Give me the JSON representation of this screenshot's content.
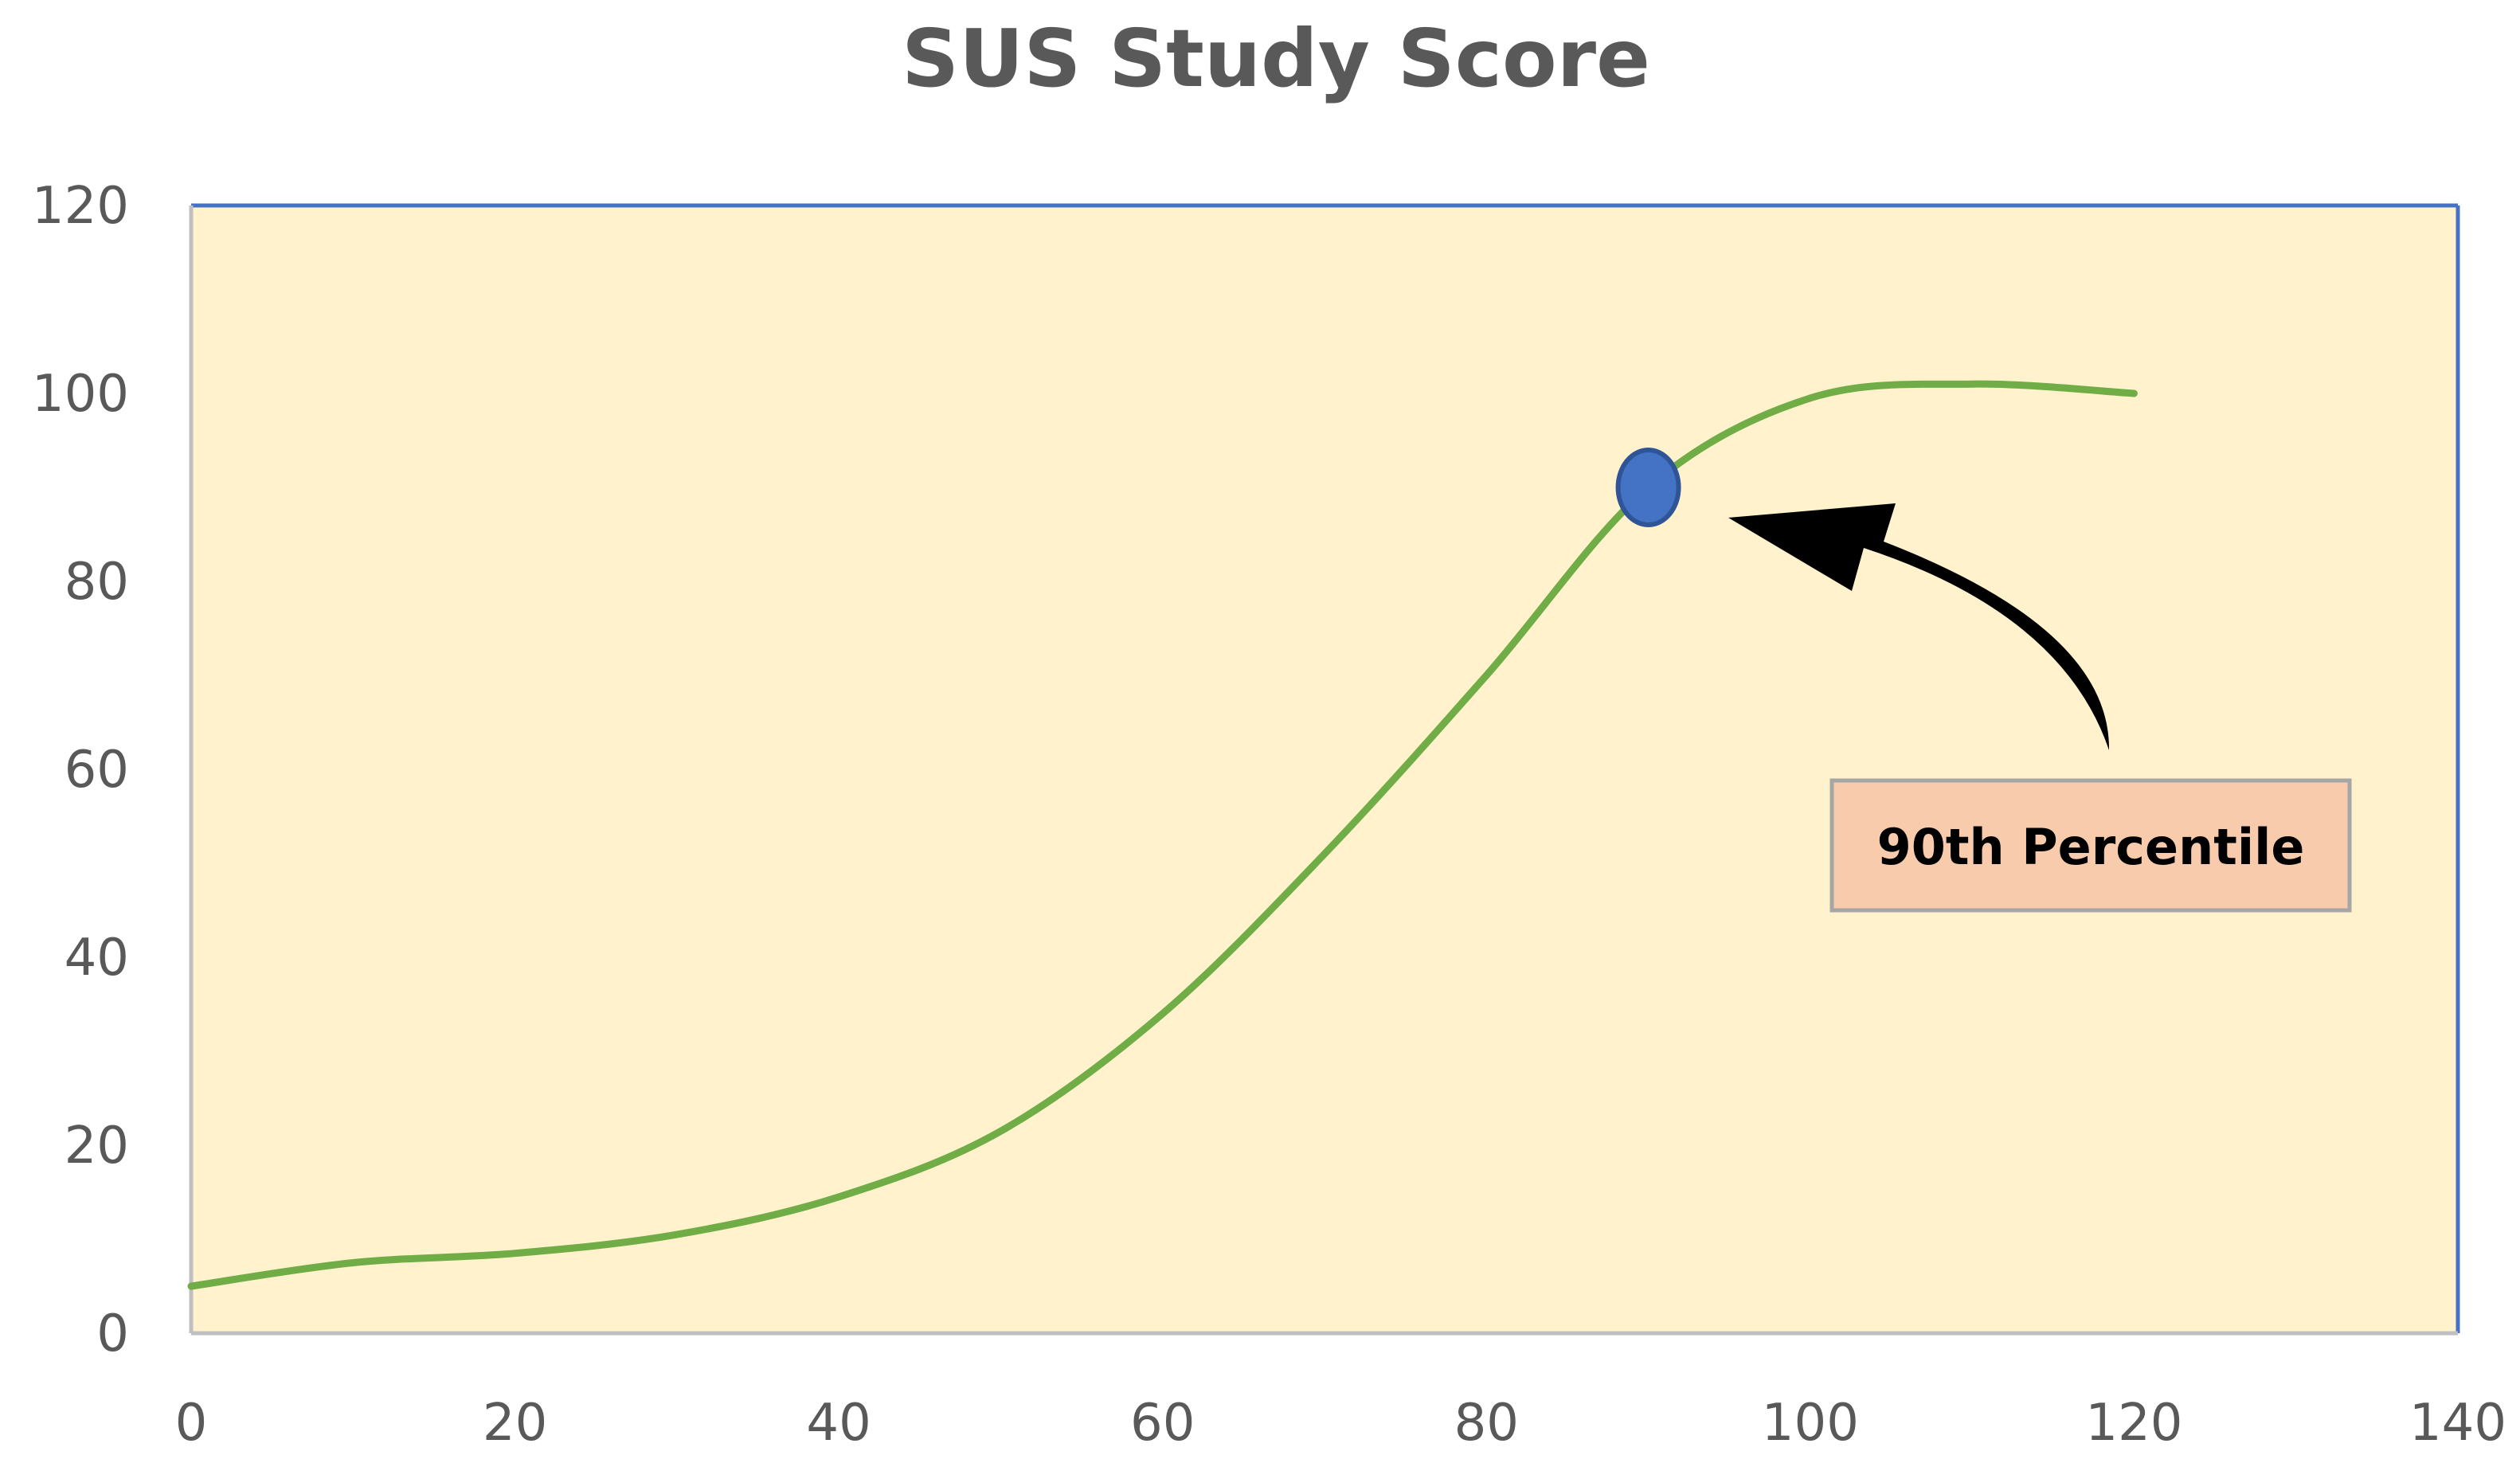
{
  "chart_data": {
    "type": "line",
    "title": "SUS Study Score",
    "xlabel": "",
    "ylabel": "",
    "xlim": [
      0,
      140
    ],
    "ylim": [
      0,
      120
    ],
    "x_ticks": [
      0,
      20,
      40,
      60,
      80,
      100,
      120,
      140
    ],
    "y_ticks": [
      0,
      20,
      40,
      60,
      80,
      100,
      120
    ],
    "grid": false,
    "legend": "none",
    "plot_background": "#fff2cc",
    "series": [
      {
        "color": "#70ad47",
        "x": [
          0,
          10,
          20,
          30,
          40,
          50,
          60,
          70,
          80,
          90,
          100,
          110,
          120
        ],
        "y": [
          5,
          7.5,
          8.5,
          10.5,
          14.5,
          21.5,
          34,
          51,
          70,
          90,
          99.5,
          101,
          100
        ]
      }
    ],
    "highlight_point": {
      "x": 90,
      "y": 90,
      "color": "#4472c4",
      "stroke": "#2f5597"
    },
    "annotation": {
      "text": "90th Percentile",
      "box_fill": "#f8cbad",
      "box_stroke": "#a6a6a6",
      "arrow_color": "#000000"
    }
  }
}
